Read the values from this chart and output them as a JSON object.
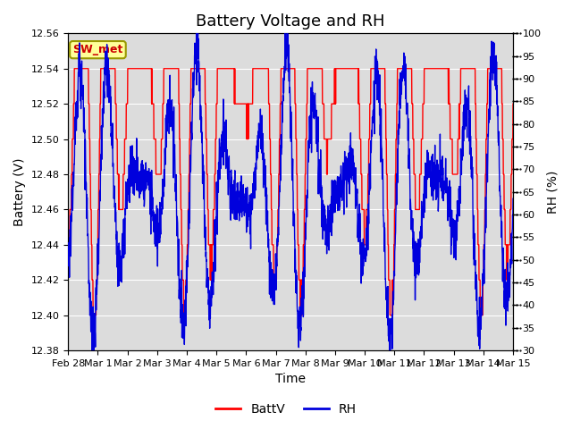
{
  "title": "Battery Voltage and RH",
  "xlabel": "Time",
  "ylabel_left": "Battery (V)",
  "ylabel_right": "RH (%)",
  "station_label": "SW_met",
  "x_tick_labels": [
    "Feb 28",
    "Mar 1",
    "Mar 2",
    "Mar 3",
    "Mar 4",
    "Mar 5",
    "Mar 6",
    "Mar 7",
    "Mar 8",
    "Mar 9",
    "Mar 10",
    "Mar 11",
    "Mar 12",
    "Mar 13",
    "Mar 14",
    "Mar 15"
  ],
  "ylim_left": [
    12.38,
    12.56
  ],
  "ylim_right": [
    30,
    100
  ],
  "yticks_left": [
    12.38,
    12.4,
    12.42,
    12.44,
    12.46,
    12.48,
    12.5,
    12.52,
    12.54,
    12.56
  ],
  "yticks_right": [
    30,
    35,
    40,
    45,
    50,
    55,
    60,
    65,
    70,
    75,
    80,
    85,
    90,
    95,
    100
  ],
  "batt_color": "#FF0000",
  "rh_color": "#0000DD",
  "background_color": "#DCDCDC",
  "title_fontsize": 13,
  "axis_label_fontsize": 10,
  "tick_fontsize": 8,
  "legend_fontsize": 10,
  "station_box_facecolor": "#FFFF99",
  "station_box_edgecolor": "#999900",
  "station_text_color": "#CC0000",
  "grid_color": "#FFFFFF",
  "num_points": 2160,
  "seed": 7
}
